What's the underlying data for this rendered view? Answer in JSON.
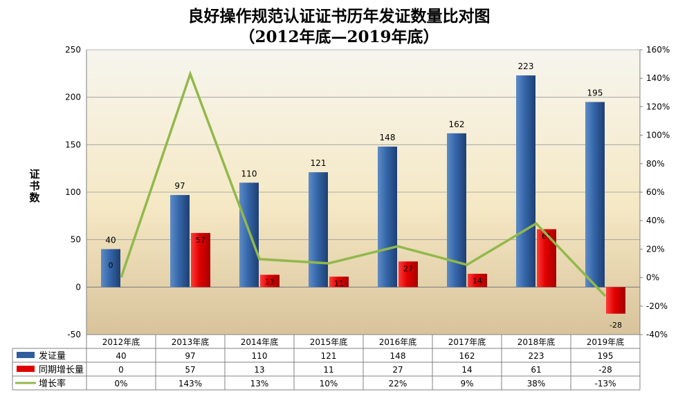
{
  "title_line1": "良好操作规范认证证书历年发证数量比对图",
  "title_line2": "（2012年底—2019年底）",
  "ylabel_chars": [
    "证",
    "书",
    "数"
  ],
  "colors": {
    "bar_blue": "#2E5E9E",
    "bar_red": "#E00000",
    "line_green": "#92B84B",
    "bg_top": "#F6F5EE",
    "bg_mid": "#F5E8C4",
    "bg_bottom": "#D8C39B"
  },
  "chart_data": {
    "type": "bar",
    "categories": [
      "2012年底",
      "2013年底",
      "2014年底",
      "2015年底",
      "2016年底",
      "2017年底",
      "2018年底",
      "2019年底"
    ],
    "series": [
      {
        "name": "发证量",
        "kind": "bar",
        "axis": "left",
        "values": [
          40,
          97,
          110,
          121,
          148,
          162,
          223,
          195
        ]
      },
      {
        "name": "同期增长量",
        "kind": "bar",
        "axis": "left",
        "values": [
          0,
          57,
          13,
          11,
          27,
          14,
          61,
          -28
        ]
      },
      {
        "name": "增长率",
        "kind": "line",
        "axis": "right",
        "values": [
          0,
          1.43,
          0.13,
          0.1,
          0.22,
          0.09,
          0.38,
          -0.13
        ]
      }
    ],
    "table_rows": [
      [
        "40",
        "97",
        "110",
        "121",
        "148",
        "162",
        "223",
        "195"
      ],
      [
        "0",
        "57",
        "13",
        "11",
        "27",
        "14",
        "61",
        "-28"
      ],
      [
        "0%",
        "143%",
        "13%",
        "10%",
        "22%",
        "9%",
        "38%",
        "-13%"
      ]
    ],
    "ylim_left": [
      -50,
      250
    ],
    "yticks_left": [
      -50,
      0,
      50,
      100,
      150,
      200,
      250
    ],
    "ylim_right": [
      -0.4,
      1.6
    ],
    "yticks_right_labels": [
      "-40%",
      "-20%",
      "0%",
      "20%",
      "40%",
      "60%",
      "80%",
      "100%",
      "120%",
      "140%",
      "160%"
    ],
    "grid": true,
    "legend": "data-table"
  }
}
